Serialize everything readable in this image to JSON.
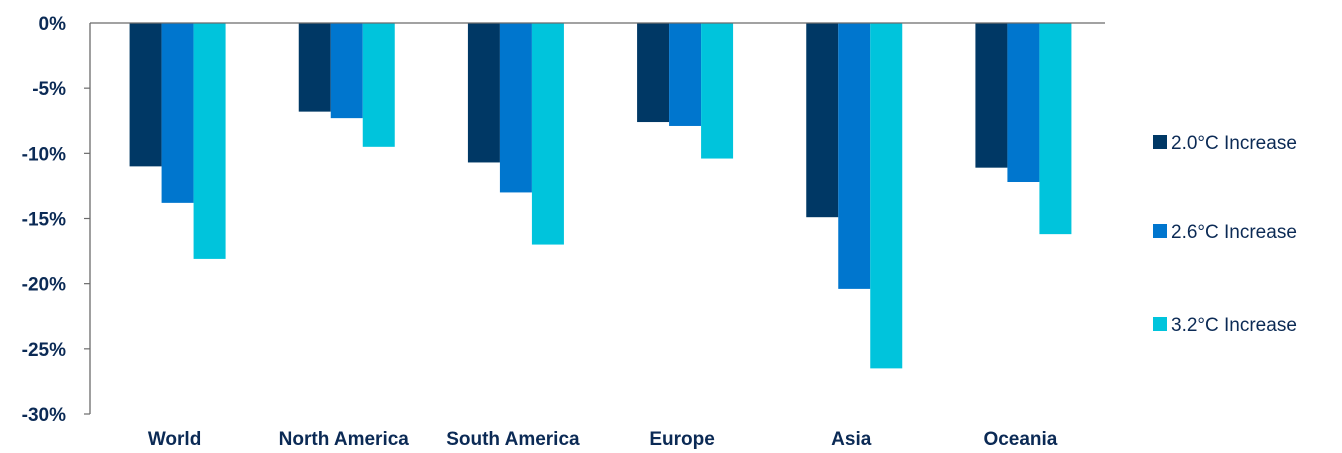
{
  "chart_data": {
    "type": "bar",
    "categories": [
      "World",
      "North America",
      "South America",
      "Europe",
      "Asia",
      "Oceania"
    ],
    "series": [
      {
        "name": "2.0°C Increase",
        "color": "#003865",
        "values": [
          -11.0,
          -6.8,
          -10.7,
          -7.6,
          -14.9,
          -11.1
        ]
      },
      {
        "name": "2.6°C Increase",
        "color": "#0076ce",
        "values": [
          -13.8,
          -7.3,
          -13.0,
          -7.9,
          -20.4,
          -12.2
        ]
      },
      {
        "name": "3.2°C Increase",
        "color": "#00c4dc",
        "values": [
          -18.1,
          -9.5,
          -17.0,
          -10.4,
          -26.5,
          -16.2
        ]
      }
    ],
    "y_ticks": [
      "0%",
      "-5%",
      "-10%",
      "-15%",
      "-20%",
      "-25%",
      "-30%"
    ],
    "y_tick_values": [
      0,
      -5,
      -10,
      -15,
      -20,
      -25,
      -30
    ],
    "ylim": [
      -30,
      0
    ],
    "xlabel": "",
    "ylabel": "",
    "title": "",
    "grid": false,
    "legend_position": "right"
  }
}
